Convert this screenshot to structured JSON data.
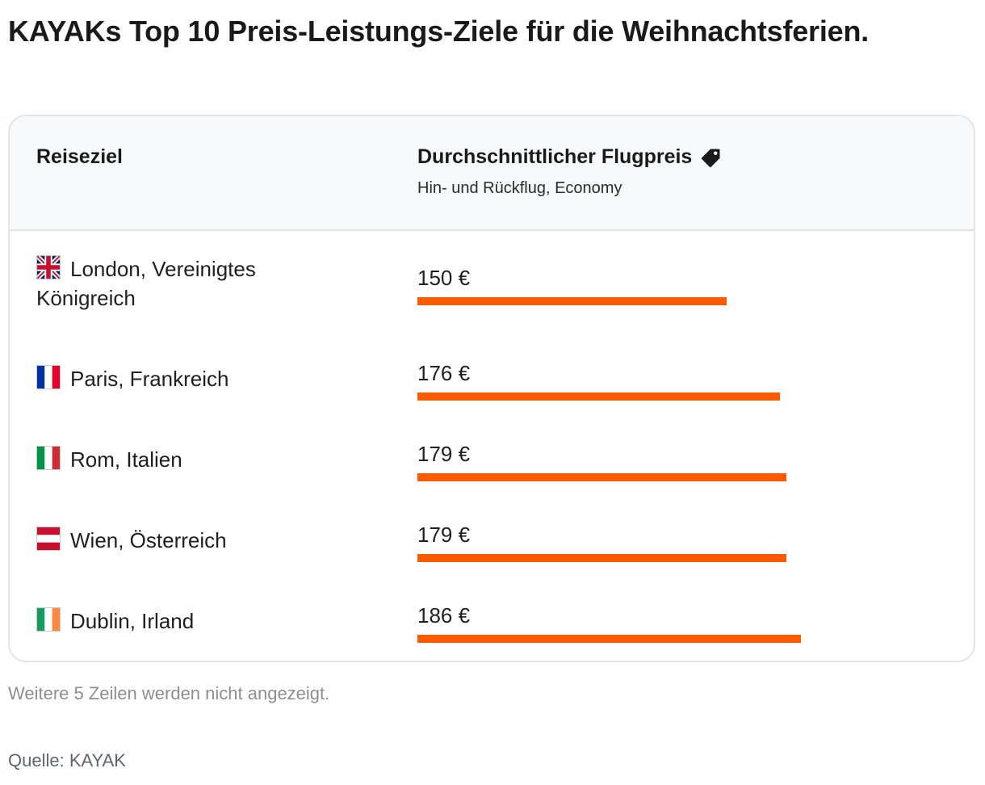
{
  "title": "KAYAKs Top 10 Preis-Leistungs-Ziele für die Weihnachtsferien.",
  "header": {
    "col1": "Reiseziel",
    "col2": "Durchschnittlicher Flugpreis",
    "col2_icon": "price-tag-icon",
    "col2_sub": "Hin- und Rückflug, Economy"
  },
  "chart_data": {
    "type": "bar",
    "orientation": "horizontal",
    "categories": [
      "London, Vereinigtes Königreich",
      "Paris, Frankreich",
      "Rom, Italien",
      "Wien, Österreich",
      "Dublin, Irland"
    ],
    "values": [
      150,
      176,
      179,
      179,
      186
    ],
    "value_labels": [
      "150 €",
      "176 €",
      "179 €",
      "179 €",
      "186 €"
    ],
    "bar_color": "#ff5a00",
    "xlim": [
      0,
      235
    ]
  },
  "rows": [
    {
      "destination": "London, Vereinigtes Königreich",
      "flag": "uk-flag-icon",
      "price": "150 €"
    },
    {
      "destination": "Paris, Frankreich",
      "flag": "france-flag-icon",
      "price": "176 €"
    },
    {
      "destination": "Rom, Italien",
      "flag": "italy-flag-icon",
      "price": "179 €"
    },
    {
      "destination": "Wien, Österreich",
      "flag": "austria-flag-icon",
      "price": "179 €"
    },
    {
      "destination": "Dublin, Irland",
      "flag": "ireland-flag-icon",
      "price": "186 €"
    }
  ],
  "footer": {
    "note": "Weitere 5 Zeilen werden nicht angezeigt.",
    "source": "Quelle: KAYAK"
  }
}
